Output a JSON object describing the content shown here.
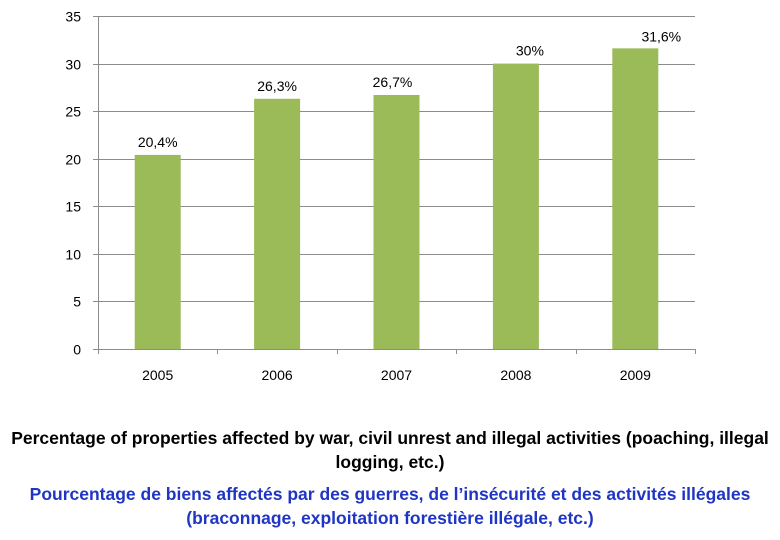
{
  "chart_data": {
    "type": "bar",
    "categories": [
      "2005",
      "2006",
      "2007",
      "2008",
      "2009"
    ],
    "values": [
      20.4,
      26.3,
      26.7,
      30,
      31.6
    ],
    "data_labels": [
      "20,4%",
      "26,3%",
      "26,7%",
      "30%",
      "31,6%"
    ],
    "ylim": [
      0,
      35
    ],
    "yticks": [
      0,
      5,
      10,
      15,
      20,
      25,
      30,
      35
    ],
    "grid": true,
    "bar_color": "#9bbb59",
    "title": "",
    "xlabel": "",
    "ylabel": ""
  },
  "caption": {
    "english": "Percentage of properties affected by war, civil unrest and illegal activities (poaching, illegal logging, etc.)",
    "french": "Pourcentage de biens affectés par des guerres, de l’insécurité et des activités illégales (braconnage, exploitation forestière illégale, etc.)",
    "french_color": "#1f35c4"
  }
}
